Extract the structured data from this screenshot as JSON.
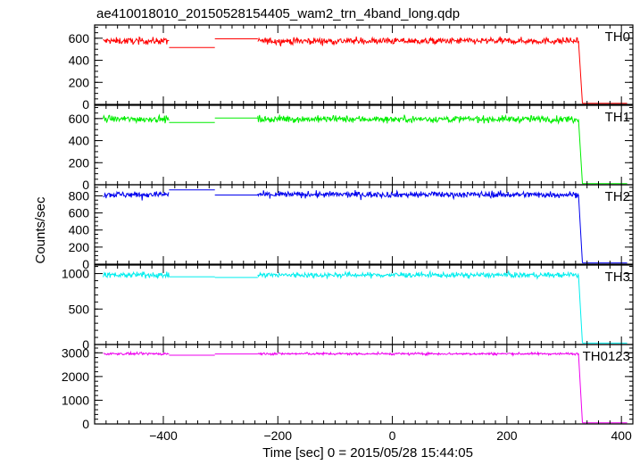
{
  "chart_data": {
    "type": "line",
    "title": "ae410018010_20150528154405_wam2_trn_4band_long.qdp",
    "xlabel": "Time [sec] 0 = 2015/05/28 15:44:05",
    "ylabel": "Counts/sec",
    "xlim": [
      -520,
      420
    ],
    "xticks": [
      -400,
      -200,
      0,
      200,
      400
    ],
    "grid": false,
    "segments_note": "",
    "panels": [
      {
        "name": "TH0",
        "color": "#ff0000",
        "ylim": [
          0,
          720
        ],
        "yticks": [
          0,
          200,
          400,
          600
        ],
        "series": [
          {
            "x": [
              -505,
              -390
            ],
            "y": [
              575,
              575
            ],
            "noise": 25
          },
          {
            "x": [
              -390,
              -310
            ],
            "y": [
              515,
              515
            ],
            "noise": 0
          },
          {
            "x": [
              -310,
              -235
            ],
            "y": [
              595,
              595
            ],
            "noise": 0
          },
          {
            "x": [
              -235,
              325
            ],
            "y": [
              575,
              575
            ],
            "noise": 25
          },
          {
            "x": [
              325,
              332
            ],
            "y": [
              575,
              10
            ],
            "noise": 0
          },
          {
            "x": [
              332,
              410
            ],
            "y": [
              10,
              10
            ],
            "noise": 0
          }
        ]
      },
      {
        "name": "TH1",
        "color": "#00ee00",
        "ylim": [
          0,
          720
        ],
        "yticks": [
          0,
          200,
          400,
          600
        ],
        "series": [
          {
            "x": [
              -505,
              -390
            ],
            "y": [
              595,
              595
            ],
            "noise": 25
          },
          {
            "x": [
              -390,
              -310
            ],
            "y": [
              565,
              565
            ],
            "noise": 0
          },
          {
            "x": [
              -310,
              -235
            ],
            "y": [
              605,
              605
            ],
            "noise": 0
          },
          {
            "x": [
              -235,
              325
            ],
            "y": [
              595,
              595
            ],
            "noise": 25
          },
          {
            "x": [
              325,
              332
            ],
            "y": [
              595,
              10
            ],
            "noise": 0
          },
          {
            "x": [
              332,
              410
            ],
            "y": [
              10,
              10
            ],
            "noise": 0
          }
        ]
      },
      {
        "name": "TH2",
        "color": "#0000ee",
        "ylim": [
          0,
          930
        ],
        "yticks": [
          0,
          200,
          400,
          600,
          800
        ],
        "series": [
          {
            "x": [
              -505,
              -390
            ],
            "y": [
              815,
              815
            ],
            "noise": 30
          },
          {
            "x": [
              -390,
              -310
            ],
            "y": [
              870,
              870
            ],
            "noise": 0
          },
          {
            "x": [
              -310,
              -235
            ],
            "y": [
              810,
              810
            ],
            "noise": 0
          },
          {
            "x": [
              -235,
              325
            ],
            "y": [
              815,
              815
            ],
            "noise": 30
          },
          {
            "x": [
              325,
              332
            ],
            "y": [
              815,
              15
            ],
            "noise": 0
          },
          {
            "x": [
              332,
              410
            ],
            "y": [
              15,
              15
            ],
            "noise": 0
          }
        ]
      },
      {
        "name": "TH3",
        "color": "#00eeee",
        "ylim": [
          0,
          1120
        ],
        "yticks": [
          0,
          500,
          1000
        ],
        "series": [
          {
            "x": [
              -505,
              -390
            ],
            "y": [
              980,
              980
            ],
            "noise": 30
          },
          {
            "x": [
              -390,
              -310
            ],
            "y": [
              955,
              955
            ],
            "noise": 0
          },
          {
            "x": [
              -310,
              -235
            ],
            "y": [
              945,
              945
            ],
            "noise": 0
          },
          {
            "x": [
              -235,
              325
            ],
            "y": [
              980,
              980
            ],
            "noise": 30
          },
          {
            "x": [
              325,
              332
            ],
            "y": [
              980,
              20
            ],
            "noise": 0
          },
          {
            "x": [
              332,
              410
            ],
            "y": [
              20,
              20
            ],
            "noise": 0
          }
        ]
      },
      {
        "name": "TH0123",
        "color": "#ee00ee",
        "ylim": [
          0,
          3350
        ],
        "yticks": [
          0,
          1000,
          2000,
          3000
        ],
        "series": [
          {
            "x": [
              -505,
              -390
            ],
            "y": [
              2960,
              2960
            ],
            "noise": 40
          },
          {
            "x": [
              -390,
              -310
            ],
            "y": [
              2900,
              2900
            ],
            "noise": 0
          },
          {
            "x": [
              -310,
              -235
            ],
            "y": [
              2950,
              2950
            ],
            "noise": 0
          },
          {
            "x": [
              -235,
              325
            ],
            "y": [
              2960,
              2960
            ],
            "noise": 40
          },
          {
            "x": [
              325,
              332
            ],
            "y": [
              2960,
              50
            ],
            "noise": 0
          },
          {
            "x": [
              332,
              410
            ],
            "y": [
              50,
              50
            ],
            "noise": 0
          }
        ]
      }
    ]
  }
}
